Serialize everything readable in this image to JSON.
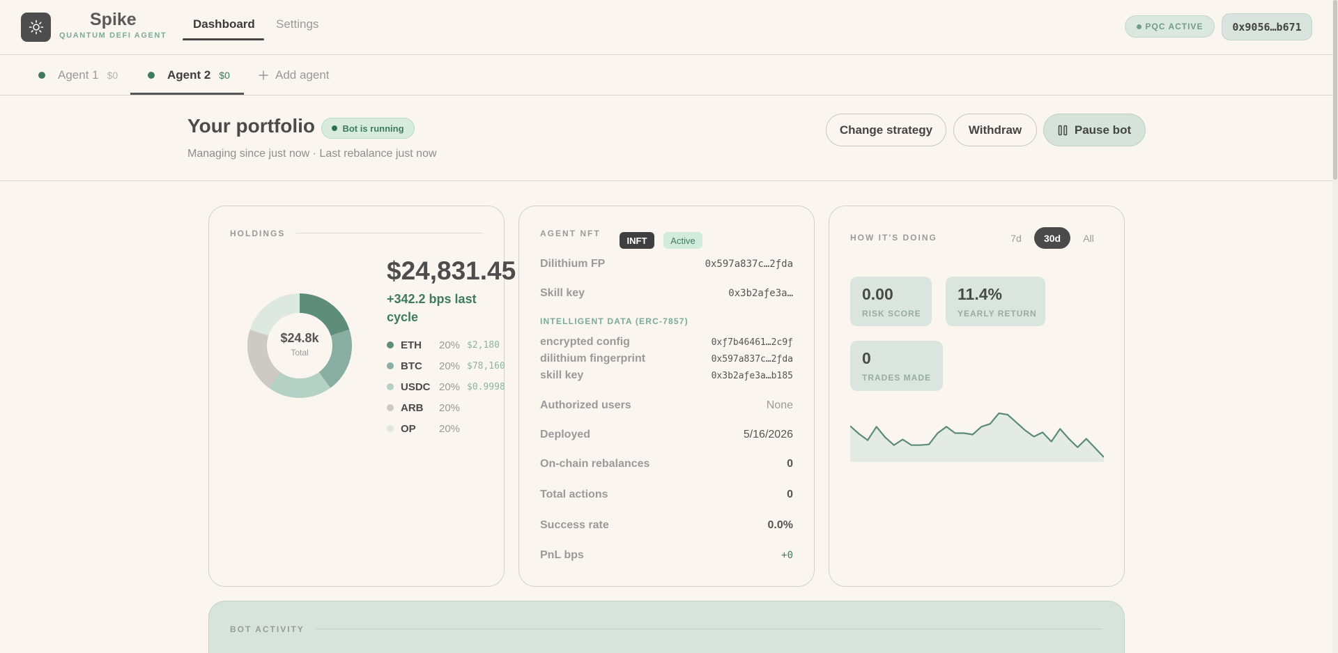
{
  "app": {
    "name": "Spike",
    "subtitle": "QUANTUM DEFI AGENT"
  },
  "nav": {
    "tabs": [
      "Dashboard",
      "Settings"
    ],
    "active": "Dashboard"
  },
  "status": {
    "pqc": "PQC ACTIVE",
    "wallet": "0x9056…b671"
  },
  "agents": {
    "items": [
      {
        "name": "Agent 1",
        "balance": "$0"
      },
      {
        "name": "Agent 2",
        "balance": "$0"
      }
    ],
    "active": "Agent 2",
    "add_label": "Add agent"
  },
  "portfolio": {
    "title": "Your portfolio",
    "status_badge": "Bot is running",
    "subtitle": "Managing since just now · Last rebalance just now",
    "buttons": {
      "change_strategy": "Change strategy",
      "withdraw": "Withdraw",
      "pause": "Pause bot"
    }
  },
  "holdings": {
    "label": "HOLDINGS",
    "total_value": "$24,831.45",
    "change": "+342.2 bps last cycle",
    "donut_center_value": "$24.8k",
    "donut_center_label": "Total",
    "assets": [
      {
        "symbol": "ETH",
        "pct": "20%",
        "price": "$2,180",
        "color": "#5e8d7c"
      },
      {
        "symbol": "BTC",
        "pct": "20%",
        "price": "$78,160",
        "color": "#87aea0"
      },
      {
        "symbol": "USDC",
        "pct": "20%",
        "price": "$0.9998",
        "color": "#b5d0c5"
      },
      {
        "symbol": "ARB",
        "pct": "20%",
        "price": "",
        "color": "#cdcac5"
      },
      {
        "symbol": "OP",
        "pct": "20%",
        "price": "",
        "color": "#dce8e0"
      }
    ]
  },
  "agent_nft": {
    "label": "AGENT NFT",
    "badge_type": "INFT",
    "badge_status": "Active",
    "dilithium_fp": {
      "label": "Dilithium FP",
      "value": "0x597a837c…2ƒda"
    },
    "skill_key": {
      "label": "Skill key",
      "value": "0x3b2aƒe3a…"
    },
    "intelligent_data": {
      "label": "INTELLIGENT DATA (ERC-7857)",
      "rows": [
        {
          "label": "encrypted config",
          "value": "0xƒ7b46461…2c9ƒ"
        },
        {
          "label": "dilithium fingerprint",
          "value": "0x597a837c…2ƒda"
        },
        {
          "label": "skill key",
          "value": "0x3b2aƒe3a…b185"
        }
      ]
    },
    "authorized_users": {
      "label": "Authorized users",
      "value": "None"
    },
    "deployed": {
      "label": "Deployed",
      "value": "5/16/2026"
    },
    "onchain_rebalances": {
      "label": "On-chain rebalances",
      "value": "0"
    },
    "total_actions": {
      "label": "Total actions",
      "value": "0"
    },
    "success_rate": {
      "label": "Success rate",
      "value": "0.0%"
    },
    "pnl_bps": {
      "label": "PnL bps",
      "value": "+0"
    }
  },
  "performance": {
    "label": "HOW IT'S DOING",
    "ranges": [
      "7d",
      "30d",
      "All"
    ],
    "active_range": "30d",
    "stats": {
      "risk_score": {
        "value": "0.00",
        "label": "RISK SCORE"
      },
      "yearly_return": {
        "value": "11.4%",
        "label": "YEARLY RETURN"
      },
      "trades_made": {
        "value": "0",
        "label": "TRADES MADE"
      }
    },
    "sparkline": [
      56,
      45,
      36,
      55,
      40,
      29,
      37,
      29,
      29,
      30,
      46,
      55,
      46,
      46,
      44,
      55,
      59,
      74,
      72,
      61,
      50,
      41,
      47,
      34,
      52,
      38,
      26,
      38,
      25,
      12
    ]
  },
  "bot_activity": {
    "label": "BOT ACTIVITY"
  }
}
